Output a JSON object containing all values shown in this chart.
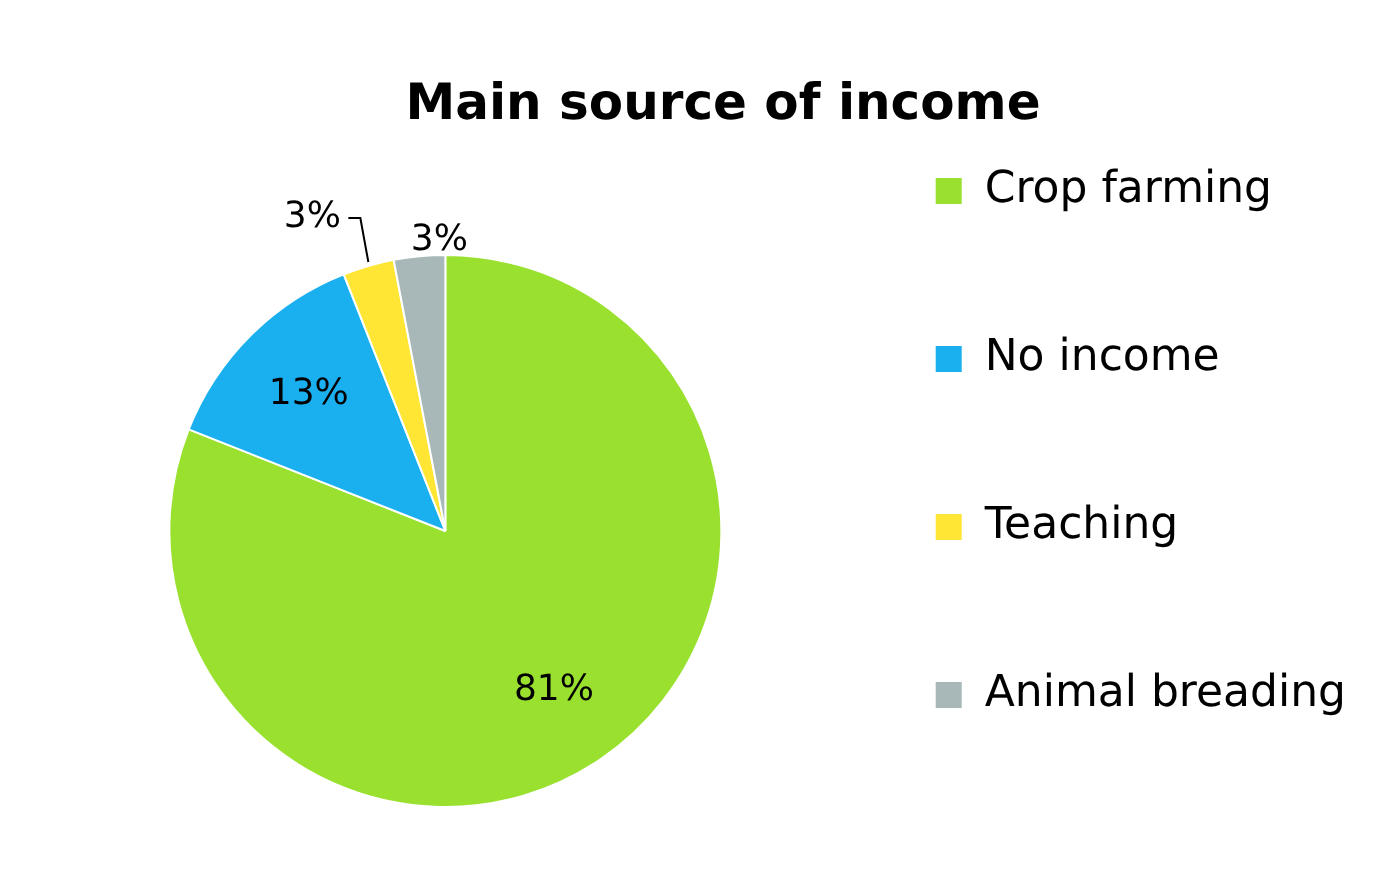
{
  "chart_data": {
    "type": "pie",
    "title": "Main source of income",
    "categories": [
      "Crop farming",
      "No income",
      "Teaching",
      "Animal breading"
    ],
    "values": [
      81,
      13,
      3,
      3
    ],
    "value_labels": [
      "81%",
      "13%",
      "3%",
      "3%"
    ],
    "colors": [
      "#99e02f",
      "#1ab0f0",
      "#ffe634",
      "#a8b8b8"
    ],
    "legend": "right"
  }
}
